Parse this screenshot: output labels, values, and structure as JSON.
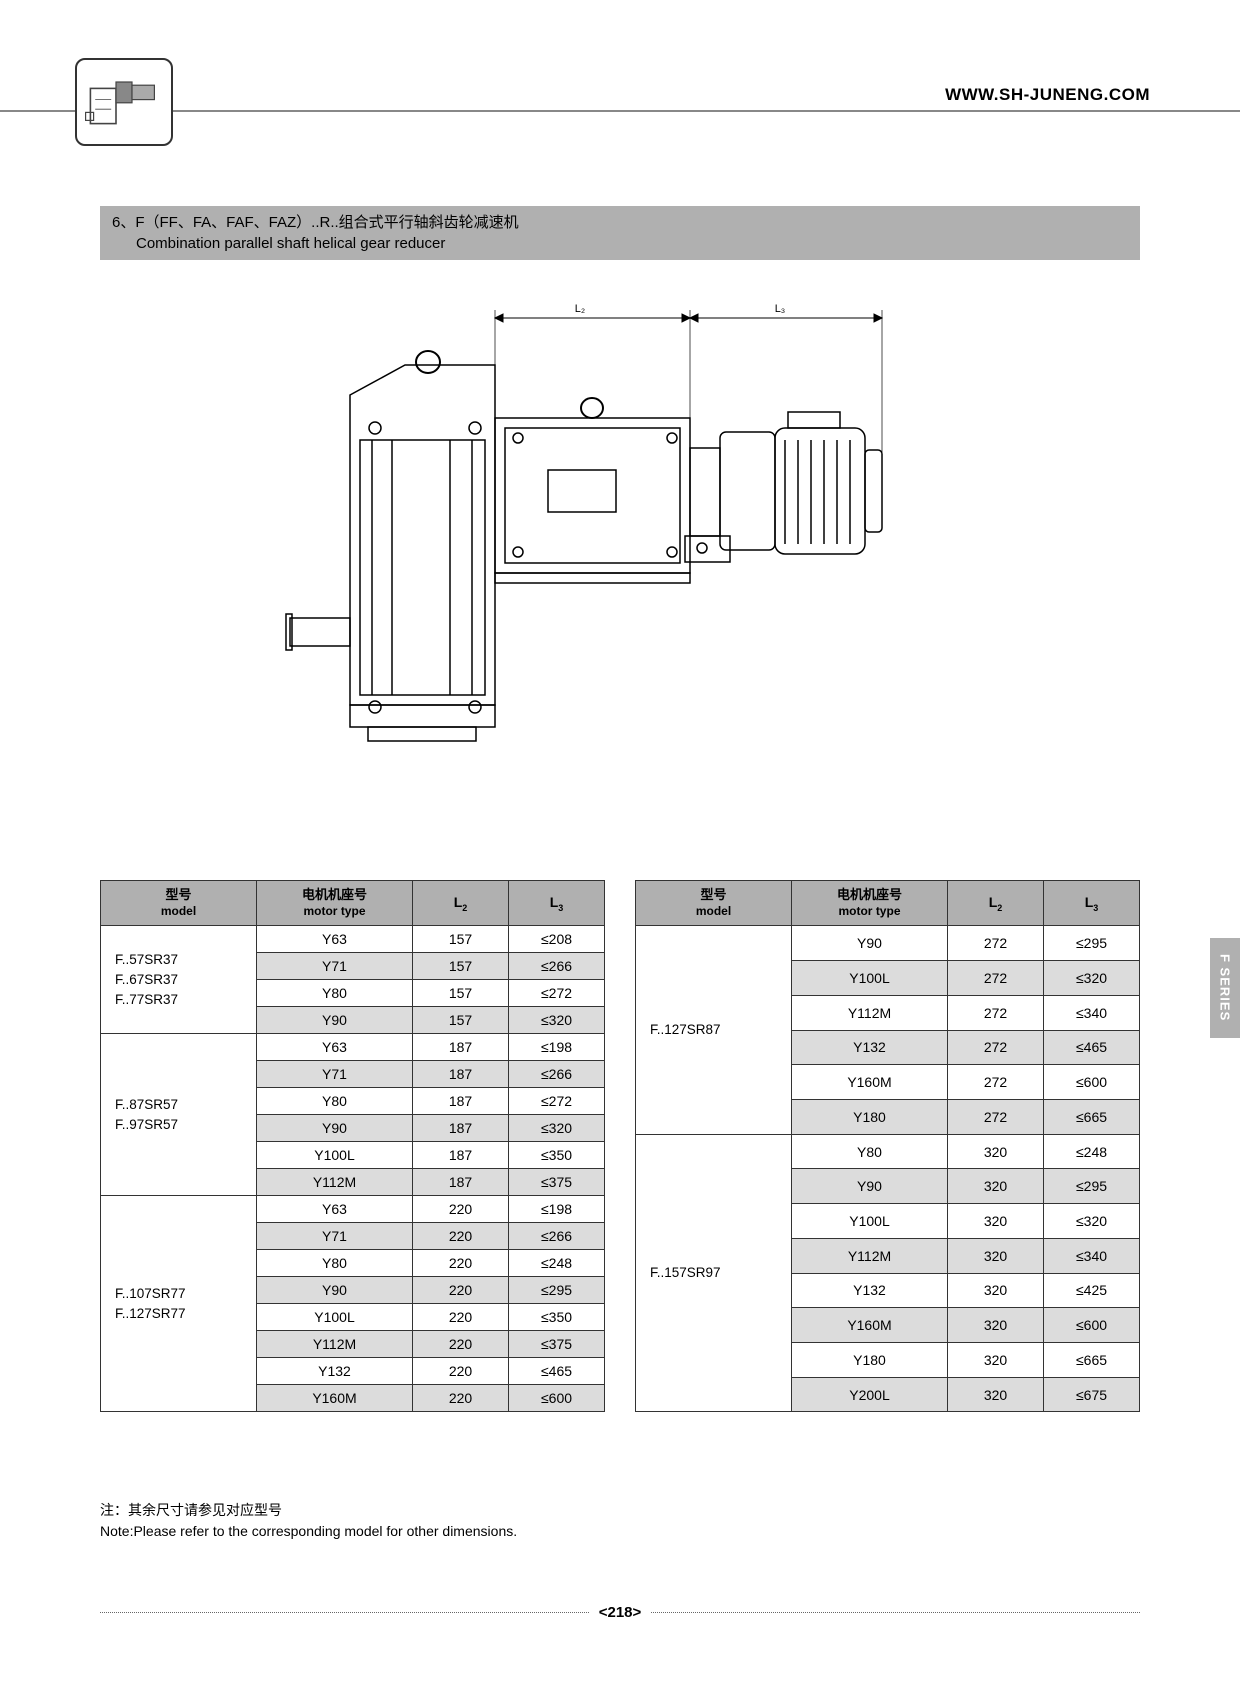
{
  "url": "WWW.SH-JUNENG.COM",
  "title_cn": "6、F（FF、FA、FAF、FAZ）..R..组合式平行轴斜齿轮减速机",
  "title_en": "Combination parallel shaft helical gear reducer",
  "dim_labels": {
    "L2": "L₂",
    "L3": "L₃"
  },
  "side_tab": "F SERIES",
  "headers": {
    "model_cn": "型号",
    "model_en": "model",
    "motor_cn": "电机机座号",
    "motor_en": "motor type",
    "L2": "L",
    "L2_sub": "2",
    "L3": "L",
    "L3_sub": "3"
  },
  "table_left": [
    {
      "model": [
        "F..57SR37",
        "F..67SR37",
        "F..77SR37"
      ],
      "rows": [
        {
          "motor": "Y63",
          "L2": "157",
          "L3": "≤208",
          "alt": false
        },
        {
          "motor": "Y71",
          "L2": "157",
          "L3": "≤266",
          "alt": true
        },
        {
          "motor": "Y80",
          "L2": "157",
          "L3": "≤272",
          "alt": false
        },
        {
          "motor": "Y90",
          "L2": "157",
          "L3": "≤320",
          "alt": true
        }
      ]
    },
    {
      "model": [
        "F..87SR57",
        "F..97SR57"
      ],
      "rows": [
        {
          "motor": "Y63",
          "L2": "187",
          "L3": "≤198",
          "alt": false
        },
        {
          "motor": "Y71",
          "L2": "187",
          "L3": "≤266",
          "alt": true
        },
        {
          "motor": "Y80",
          "L2": "187",
          "L3": "≤272",
          "alt": false
        },
        {
          "motor": "Y90",
          "L2": "187",
          "L3": "≤320",
          "alt": true
        },
        {
          "motor": "Y100L",
          "L2": "187",
          "L3": "≤350",
          "alt": false
        },
        {
          "motor": "Y112M",
          "L2": "187",
          "L3": "≤375",
          "alt": true
        }
      ]
    },
    {
      "model": [
        "F..107SR77",
        "F..127SR77"
      ],
      "rows": [
        {
          "motor": "Y63",
          "L2": "220",
          "L3": "≤198",
          "alt": false
        },
        {
          "motor": "Y71",
          "L2": "220",
          "L3": "≤266",
          "alt": true
        },
        {
          "motor": "Y80",
          "L2": "220",
          "L3": "≤248",
          "alt": false
        },
        {
          "motor": "Y90",
          "L2": "220",
          "L3": "≤295",
          "alt": true
        },
        {
          "motor": "Y100L",
          "L2": "220",
          "L3": "≤350",
          "alt": false
        },
        {
          "motor": "Y112M",
          "L2": "220",
          "L3": "≤375",
          "alt": true
        },
        {
          "motor": "Y132",
          "L2": "220",
          "L3": "≤465",
          "alt": false
        },
        {
          "motor": "Y160M",
          "L2": "220",
          "L3": "≤600",
          "alt": true
        }
      ]
    }
  ],
  "table_right": [
    {
      "model": [
        "F..127SR87"
      ],
      "rows": [
        {
          "motor": "Y90",
          "L2": "272",
          "L3": "≤295",
          "alt": false
        },
        {
          "motor": "Y100L",
          "L2": "272",
          "L3": "≤320",
          "alt": true
        },
        {
          "motor": "Y112M",
          "L2": "272",
          "L3": "≤340",
          "alt": false
        },
        {
          "motor": "Y132",
          "L2": "272",
          "L3": "≤465",
          "alt": true
        },
        {
          "motor": "Y160M",
          "L2": "272",
          "L3": "≤600",
          "alt": false
        },
        {
          "motor": "Y180",
          "L2": "272",
          "L3": "≤665",
          "alt": true
        }
      ]
    },
    {
      "model": [
        "F..157SR97"
      ],
      "rows": [
        {
          "motor": "Y80",
          "L2": "320",
          "L3": "≤248",
          "alt": false
        },
        {
          "motor": "Y90",
          "L2": "320",
          "L3": "≤295",
          "alt": true
        },
        {
          "motor": "Y100L",
          "L2": "320",
          "L3": "≤320",
          "alt": false
        },
        {
          "motor": "Y112M",
          "L2": "320",
          "L3": "≤340",
          "alt": true
        },
        {
          "motor": "Y132",
          "L2": "320",
          "L3": "≤425",
          "alt": false
        },
        {
          "motor": "Y160M",
          "L2": "320",
          "L3": "≤600",
          "alt": true
        },
        {
          "motor": "Y180",
          "L2": "320",
          "L3": "≤665",
          "alt": false
        },
        {
          "motor": "Y200L",
          "L2": "320",
          "L3": "≤675",
          "alt": true
        }
      ]
    }
  ],
  "note_cn": "注：其余尺寸请参见对应型号",
  "note_en": "Note:Please refer to the corresponding model for other dimensions.",
  "page_number": "<218>",
  "colors": {
    "header_bg": "#b0b0b0",
    "alt_bg": "#dcdcdc",
    "border": "#333333",
    "text": "#000000"
  }
}
